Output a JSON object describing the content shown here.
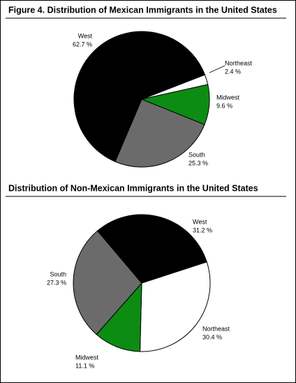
{
  "chart_data": [
    {
      "type": "pie",
      "title": "Figure 4. Distribution of Mexican Immigrants in the United States",
      "categories": [
        "Northeast",
        "Midwest",
        "South",
        "West"
      ],
      "values": [
        2.4,
        9.6,
        25.3,
        62.7
      ],
      "value_labels": [
        "2.4 %",
        "9.6 %",
        "25.3 %",
        "62.7 %"
      ],
      "colors": [
        "#ffffff",
        "#0c8c12",
        "#6b6b6b",
        "#000000"
      ]
    },
    {
      "type": "pie",
      "title": "Distribution of Non-Mexican Immigrants in the United States",
      "categories": [
        "Northeast",
        "Midwest",
        "South",
        "West"
      ],
      "values": [
        30.4,
        11.1,
        27.3,
        31.2
      ],
      "value_labels": [
        "30.4 %",
        "11.1 %",
        "27.3 %",
        "31.2 %"
      ],
      "colors": [
        "#ffffff",
        "#0c8c12",
        "#6b6b6b",
        "#000000"
      ]
    }
  ]
}
